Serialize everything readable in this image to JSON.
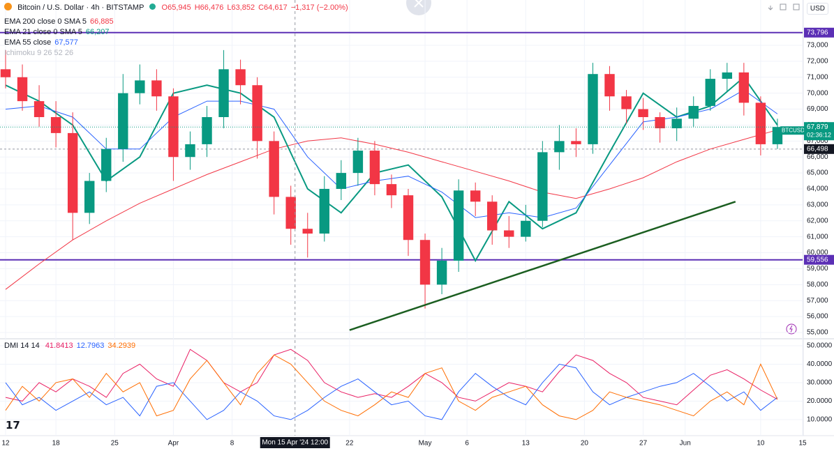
{
  "chart_data": [
    {
      "type": "candlestick",
      "title": "Bitcoin / U.S. Dollar · 4h · BITSTAMP",
      "quote": [
        "O65,945",
        "H66,476",
        "L63,852",
        "C64,617",
        "−1,317 (−2.00%)"
      ],
      "currency": "USD",
      "x": [
        0,
        2,
        4,
        6,
        8,
        10,
        12,
        14,
        16,
        18,
        20,
        22,
        24,
        26,
        28,
        30,
        32,
        34,
        36,
        38,
        40,
        42,
        44,
        46,
        48,
        50,
        52,
        54,
        56,
        58,
        60,
        62,
        64,
        66,
        68,
        70,
        72,
        74,
        76,
        78,
        80,
        82,
        84,
        86,
        88,
        90,
        92
      ],
      "open": [
        71500,
        71000,
        69500,
        68500,
        67500,
        62500,
        64500,
        66500,
        70000,
        70800,
        69800,
        66000,
        66800,
        68500,
        71500,
        70500,
        67000,
        63500,
        61500,
        61200,
        64000,
        65000,
        66400,
        64300,
        63600,
        60800,
        58000,
        59500,
        63900,
        63200,
        61400,
        61000,
        62000,
        66300,
        67000,
        66800,
        71200,
        69800,
        69000,
        68500,
        67800,
        68400,
        69200,
        70900,
        71300,
        69400,
        66800
      ],
      "high": [
        72700,
        71800,
        70500,
        69500,
        68800,
        65000,
        67200,
        71200,
        71800,
        71500,
        70300,
        67600,
        69200,
        72700,
        72100,
        71000,
        67600,
        64200,
        62500,
        64800,
        65800,
        67200,
        67000,
        64900,
        64000,
        61200,
        60300,
        64600,
        64400,
        63600,
        62300,
        63000,
        67000,
        68000,
        67800,
        71900,
        71700,
        70200,
        69700,
        68800,
        69100,
        69800,
        71500,
        71900,
        71900,
        69800,
        68400
      ],
      "low": [
        70300,
        68900,
        67900,
        66600,
        60800,
        61800,
        63800,
        65700,
        69300,
        68900,
        64500,
        65200,
        66000,
        67800,
        69300,
        65900,
        62400,
        60500,
        59700,
        60700,
        63300,
        64200,
        63600,
        62800,
        59800,
        56500,
        57400,
        58800,
        62300,
        60500,
        60300,
        60700,
        61600,
        65200,
        66000,
        66200,
        68900,
        68100,
        67700,
        66900,
        67000,
        67900,
        68900,
        70100,
        68600,
        66100,
        66500
      ],
      "close": [
        71000,
        69500,
        68500,
        67500,
        62500,
        64500,
        66500,
        70000,
        70800,
        69800,
        66000,
        66800,
        68500,
        71500,
        70500,
        67000,
        63500,
        61500,
        61200,
        64000,
        65000,
        66400,
        64300,
        63600,
        60800,
        58000,
        59500,
        63900,
        63200,
        61400,
        61000,
        62000,
        66300,
        67000,
        66800,
        71200,
        69800,
        69000,
        68500,
        67800,
        68400,
        69200,
        70900,
        71300,
        69400,
        66800,
        67879
      ],
      "up_color": "#089981",
      "down_color": "#f23645",
      "xlim": [
        0,
        95
      ],
      "xticks": [
        {
          "value": 0,
          "label": "12"
        },
        {
          "value": 6,
          "label": "18"
        },
        {
          "value": 13,
          "label": "25"
        },
        {
          "value": 20,
          "label": "Apr"
        },
        {
          "value": 27,
          "label": "8"
        },
        {
          "value": 41,
          "label": "22"
        },
        {
          "value": 50,
          "label": "May"
        },
        {
          "value": 55,
          "label": "6"
        },
        {
          "value": 62,
          "label": "13"
        },
        {
          "value": 69,
          "label": "20"
        },
        {
          "value": 76,
          "label": "27"
        },
        {
          "value": 81,
          "label": "Jun"
        },
        {
          "value": 90,
          "label": "10"
        },
        {
          "value": 95,
          "label": "15"
        }
      ],
      "ylim": [
        54650,
        75840
      ],
      "yticks": [
        {
          "value": 55000,
          "label": "55,000"
        },
        {
          "value": 56000,
          "label": "56,000"
        },
        {
          "value": 57000,
          "label": "57,000"
        },
        {
          "value": 58000,
          "label": "58,000"
        },
        {
          "value": 59000,
          "label": "59,000"
        },
        {
          "value": 60000,
          "label": "60,000"
        },
        {
          "value": 61000,
          "label": "61,000"
        },
        {
          "value": 62000,
          "label": "62,000"
        },
        {
          "value": 63000,
          "label": "63,000"
        },
        {
          "value": 64000,
          "label": "64,000"
        },
        {
          "value": 65000,
          "label": "65,000"
        },
        {
          "value": 66000,
          "label": "66,000"
        },
        {
          "value": 67000,
          "label": "67,000"
        },
        {
          "value": 68000,
          "label": "68,000"
        },
        {
          "value": 69000,
          "label": "69,000"
        },
        {
          "value": 70000,
          "label": "70,000"
        },
        {
          "value": 71000,
          "label": "71,000"
        },
        {
          "value": 72000,
          "label": "72,000"
        },
        {
          "value": 73000,
          "label": "73,000"
        }
      ],
      "grid": true,
      "indicators": [
        {
          "name": "EMA 200 close 0 SMA 5",
          "value_label": "66,885",
          "color": "#f23645",
          "width": 1,
          "x": [
            0,
            4,
            8,
            12,
            16,
            20,
            24,
            28,
            32,
            36,
            40,
            44,
            48,
            52,
            56,
            60,
            64,
            68,
            72,
            76,
            80,
            84,
            88,
            92
          ],
          "values": [
            57700,
            59300,
            60800,
            62000,
            63100,
            64000,
            64900,
            65700,
            66500,
            67000,
            67200,
            66800,
            66300,
            65700,
            65100,
            64500,
            63800,
            63400,
            64000,
            64700,
            65700,
            66500,
            67100,
            67700
          ]
        },
        {
          "name": "EMA 21 close 0 SMA 5",
          "value_label": "66,207",
          "color": "#089981",
          "width": 2,
          "x": [
            0,
            4,
            8,
            12,
            16,
            20,
            24,
            28,
            32,
            36,
            40,
            44,
            48,
            52,
            56,
            60,
            64,
            68,
            72,
            76,
            80,
            84,
            88,
            92
          ],
          "values": [
            70500,
            69500,
            68000,
            64500,
            66000,
            70000,
            70500,
            70000,
            68500,
            64000,
            62500,
            65000,
            65500,
            63500,
            59500,
            63200,
            61500,
            62500,
            66300,
            70000,
            68500,
            69200,
            71000,
            68000
          ]
        },
        {
          "name": "EMA 55 close",
          "value_label": "67,577",
          "color": "#2962ff",
          "width": 1,
          "x": [
            0,
            4,
            8,
            12,
            16,
            20,
            24,
            28,
            32,
            36,
            40,
            44,
            48,
            52,
            56,
            60,
            64,
            68,
            72,
            76,
            80,
            84,
            88,
            92
          ],
          "values": [
            69000,
            69200,
            68500,
            66500,
            66500,
            68500,
            69500,
            69500,
            69000,
            66000,
            64000,
            64500,
            64800,
            63800,
            62200,
            62500,
            62200,
            62800,
            65500,
            68200,
            68500,
            69000,
            70200,
            68700
          ]
        }
      ],
      "extra_legend": "Ichimoku 9 26 52 26",
      "hlines": [
        {
          "value": 73796,
          "label": "73,796",
          "color": "#5b2fb5"
        },
        {
          "value": 59556,
          "label": "59,556",
          "color": "#5b2fb5"
        }
      ],
      "reference_line": {
        "value": 66498,
        "label": "66,498"
      },
      "last_price": {
        "value": 67879,
        "label": "67,879",
        "symbol": "BTCUSD",
        "countdown": "02:36:12",
        "color": "#089981"
      },
      "trendline": {
        "x": [
          41,
          87
        ],
        "y": [
          55150,
          63200
        ],
        "color": "#1b5e20"
      },
      "crosshair": {
        "x": 34.5,
        "label": "Mon 15 Apr '24 12:00"
      }
    },
    {
      "type": "line",
      "title": "DMI 14 14",
      "x": [
        0,
        2,
        4,
        6,
        8,
        10,
        12,
        14,
        16,
        18,
        20,
        22,
        24,
        26,
        28,
        30,
        32,
        34,
        36,
        38,
        40,
        42,
        44,
        46,
        48,
        50,
        52,
        54,
        56,
        58,
        60,
        62,
        64,
        66,
        68,
        70,
        72,
        74,
        76,
        78,
        80,
        82,
        84,
        86,
        88,
        90,
        92
      ],
      "series": [
        {
          "name": "41.8413",
          "color": "#e91e63",
          "values": [
            22,
            20,
            30,
            25,
            32,
            28,
            22,
            35,
            40,
            32,
            28,
            48,
            42,
            30,
            25,
            30,
            45,
            48,
            42,
            30,
            25,
            22,
            24,
            22,
            28,
            35,
            30,
            22,
            20,
            25,
            30,
            28,
            25,
            36,
            45,
            42,
            35,
            30,
            22,
            20,
            18,
            26,
            34,
            37,
            32,
            26,
            21
          ]
        },
        {
          "name": "12.7963",
          "color": "#2962ff",
          "values": [
            30,
            18,
            22,
            15,
            20,
            25,
            18,
            22,
            12,
            28,
            30,
            20,
            10,
            15,
            25,
            20,
            12,
            10,
            15,
            22,
            28,
            32,
            25,
            18,
            20,
            12,
            10,
            25,
            35,
            28,
            22,
            18,
            30,
            40,
            38,
            25,
            18,
            22,
            25,
            28,
            30,
            35,
            28,
            20,
            25,
            15,
            22
          ]
        },
        {
          "name": "34.2939",
          "color": "#ff6d00",
          "values": [
            15,
            28,
            20,
            30,
            32,
            22,
            35,
            25,
            30,
            12,
            15,
            32,
            42,
            30,
            18,
            35,
            45,
            40,
            30,
            20,
            15,
            12,
            18,
            25,
            22,
            35,
            38,
            20,
            15,
            22,
            25,
            28,
            18,
            12,
            10,
            15,
            25,
            22,
            20,
            18,
            15,
            12,
            20,
            25,
            18,
            40,
            21
          ]
        }
      ],
      "ylim": [
        1.3,
        53
      ],
      "yticks": [
        {
          "value": 10,
          "label": "10.0000"
        },
        {
          "value": 20,
          "label": "20.0000"
        },
        {
          "value": 30,
          "label": "30.0000"
        },
        {
          "value": 40,
          "label": "40.0000"
        },
        {
          "value": 50,
          "label": "50.0000"
        }
      ]
    }
  ]
}
